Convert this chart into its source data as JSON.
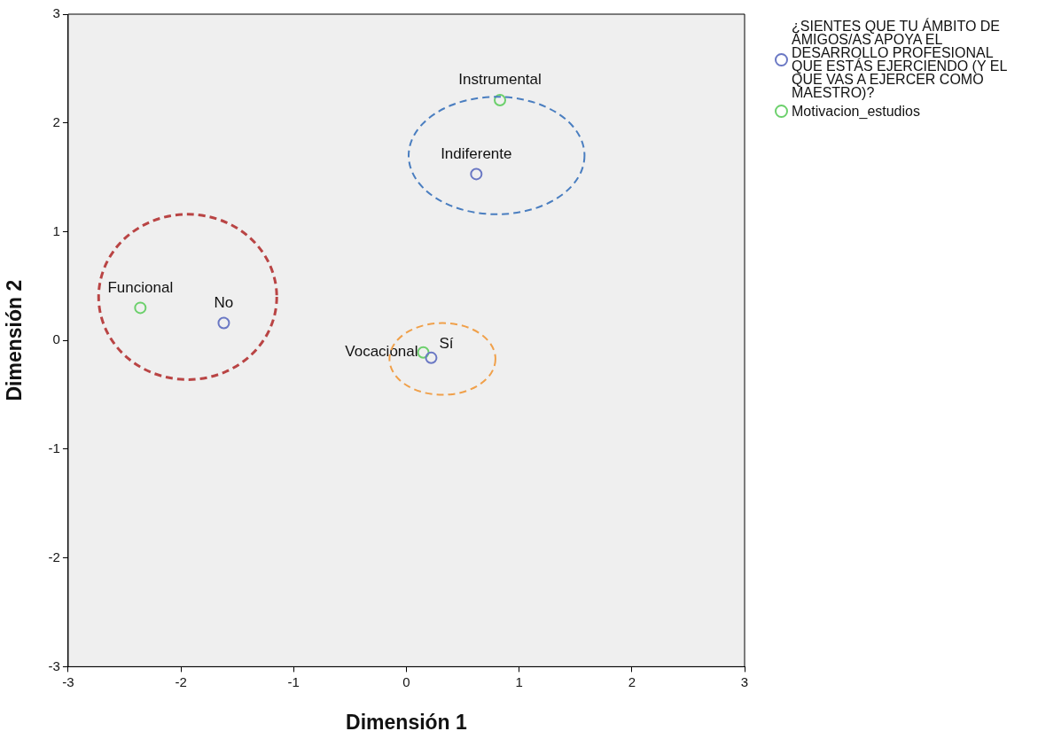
{
  "chart_data": {
    "type": "scatter",
    "xlabel": "Dimensión 1",
    "ylabel": "Dimensión 2",
    "xlim": [
      -3,
      3
    ],
    "xticks": [
      -3,
      -2,
      -1,
      0,
      1,
      2,
      3
    ],
    "ylim": [
      -3,
      3
    ],
    "yticks": [
      -3,
      -2,
      -1,
      0,
      1,
      2,
      3
    ],
    "grid": false,
    "legend": "top right",
    "marker": "circle",
    "series": [
      {
        "name": "¿SIENTES QUE TU ÁMBITO DE AMIGOS/AS APOYA EL DESARROLLO PROFESIONAL QUE ESTÁS EJERCIENDO (Y EL QUE VAS A EJERCER COMO MAESTRO)?",
        "color": "#6a78c4",
        "x": [
          0.62,
          -1.62,
          0.22
        ],
        "values": [
          1.53,
          0.16,
          -0.16
        ]
      },
      {
        "name": "Motivacion_estudios",
        "color": "#6cd06c",
        "x": [
          0.83,
          -2.36,
          0.15
        ],
        "values": [
          2.21,
          0.3,
          -0.11
        ]
      }
    ],
    "annotations": [
      {
        "text": "Indiferente",
        "x": 0.62,
        "y": 1.53
      },
      {
        "text": "No",
        "x": -1.62,
        "y": 0.16
      },
      {
        "text": "Sí",
        "x": 0.22,
        "y": -0.16
      },
      {
        "text": "Instrumental",
        "x": 0.83,
        "y": 2.21
      },
      {
        "text": "Funcional",
        "x": -2.36,
        "y": 0.3
      },
      {
        "text": "Vocacional",
        "x": 0.15,
        "y": -0.11
      }
    ]
  }
}
